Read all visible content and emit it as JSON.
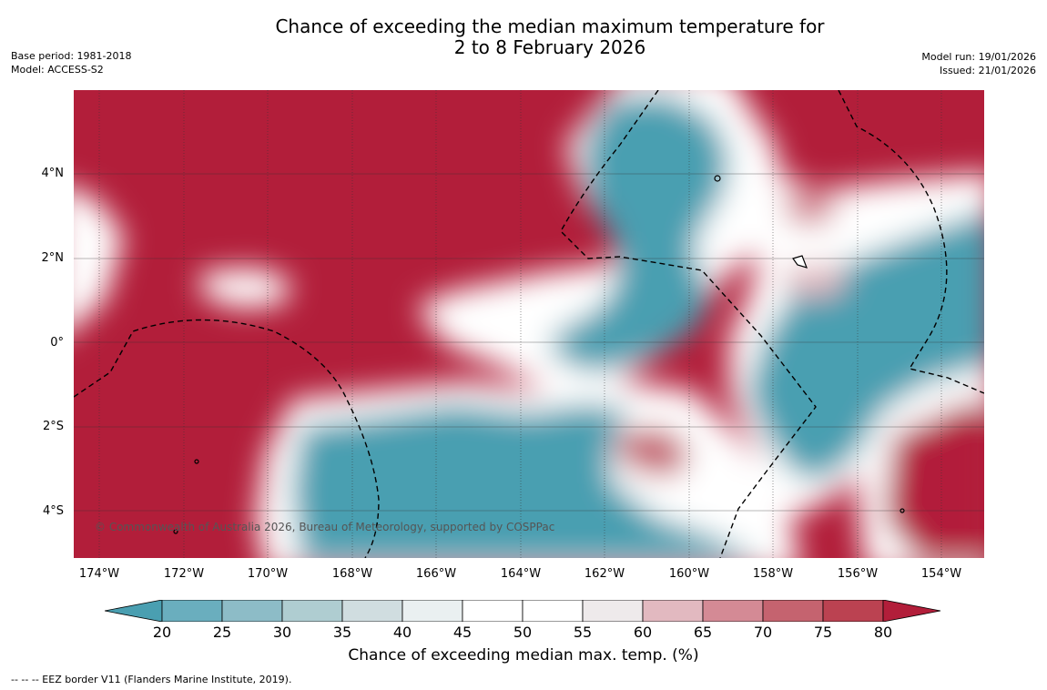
{
  "title_line1": "Chance of exceeding the median maximum temperature for",
  "title_line2": "2 to 8 February 2026",
  "base_period": "Base period: 1981-2018",
  "model": "Model: ACCESS-S2",
  "model_run": "Model run: 19/01/2026",
  "issued": "Issued: 21/01/2026",
  "copyright": "© Commonwealth of Australia 2026, Bureau of Meteorology, supported by COSPPac",
  "lat_labels": [
    "4°N",
    "2°N",
    "0°",
    "2°S",
    "4°S"
  ],
  "lon_labels": [
    "174°W",
    "172°W",
    "170°W",
    "168°W",
    "166°W",
    "164°W",
    "162°W",
    "160°W",
    "158°W",
    "156°W",
    "154°W"
  ],
  "colorbar": {
    "ticks": [
      "20",
      "25",
      "30",
      "35",
      "40",
      "45",
      "50",
      "55",
      "60",
      "65",
      "70",
      "75",
      "80"
    ],
    "colors": [
      "#4a9fb1",
      "#6aaebe",
      "#8dbcc7",
      "#afcdd1",
      "#d0dde0",
      "#eaf0f1",
      "#ffffff",
      "#ffffff",
      "#eeeaeb",
      "#e2b9c0",
      "#d48a95",
      "#c5636f",
      "#bb4251",
      "#b21e3a"
    ],
    "label": "Chance of exceeding median max. temp. (%)"
  },
  "eez_note": "-- -- -- EEZ border V11 (Flanders Marine Institute, 2019)."
}
